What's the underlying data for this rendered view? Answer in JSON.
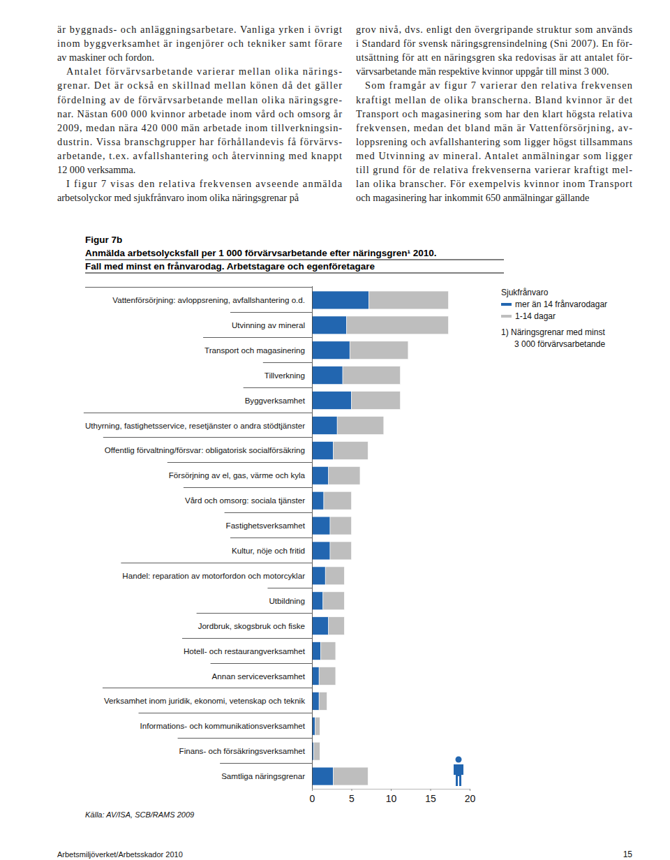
{
  "page": {
    "left_column": [
      [
        "är byggnads- och anläggningsarbetare. Vanliga yrken i övrigt",
        "inom byggverksamhet är ingenjörer och tekniker samt förare",
        "av maskiner och fordon."
      ],
      [
        "Antalet förvärvsarbetande varierar mellan olika närings-",
        "grenar. Det är också en skillnad mellan könen då det gäller",
        "fördelning av de förvärvsarbetande mellan olika näringsgre-",
        "nar. Nästan 600 000 kvinnor arbetade inom vård och omsorg år",
        "2009, medan nära 420 000 män arbetade inom tillverkningsin-",
        "dustrin. Vissa branschgrupper har förhållandevis få förvärvs-",
        "arbetande, t.ex. avfallshantering och återvinning med knappt",
        "12 000 verksamma."
      ],
      [
        "I figur 7 visas den relativa frekvensen avseende anmälda",
        "arbetsolyckor med sjukfrånvaro inom olika näringsgrenar på"
      ]
    ],
    "right_column": [
      [
        "grov nivå, dvs. enligt den övergripande struktur som används",
        "i Standard för svensk näringsgrensindelning (Sni 2007). En för-",
        "utsättning för att en näringsgren ska redovisas är att antalet för-",
        "värvsarbetande män respektive kvinnor uppgår till minst 3 000."
      ],
      [
        "Som framgår av figur 7 varierar den relativa frekvensen",
        "kraftigt mellan de olika branscherna. Bland kvinnor är det",
        "Transport och magasinering som har den klart högsta relativa",
        "frekvensen, medan det bland män är Vattenförsörjning, av-",
        "loppsrening och avfallshantering som ligger högst tillsammans",
        "med Utvinning av mineral. Antalet anmälningar som ligger",
        "till grund för de relativa frekvenserna varierar kraftigt mel-",
        "lan olika branscher. För exempelvis kvinnor inom Transport",
        "och magasinering har inkommit 650 anmälningar gällande"
      ]
    ],
    "footer_left": "Arbetsmiljöverket/Arbetsskador 2010",
    "page_number": "15"
  },
  "chart_data": {
    "type": "bar",
    "orientation": "horizontal",
    "stacked": true,
    "figure_label": "Figur 7b",
    "title": "Anmälda arbetsolycksfall per 1 000 förvärvsarbetande efter näringsgren¹ 2010.",
    "subtitle": "Fall med minst en frånvarodag. Arbetstagare och egenföretagare",
    "categories": [
      "Vattenförsörjning: avloppsrening, avfallshantering o.d.",
      "Utvinning av mineral",
      "Transport och magasinering",
      "Tillverkning",
      "Byggverksamhet",
      "Uthyrning, fastighetsservice, resetjänster o andra stödtjänster",
      "Offentlig förvaltning/försvar: obligatorisk socialförsäkring",
      "Försörjning av el, gas, värme och kyla",
      "Vård och omsorg: sociala tjänster",
      "Fastighetsverksamhet",
      "Kultur, nöje och fritid",
      "Handel: reparation av motorfordon och motorcyklar",
      "Utbildning",
      "Jordbruk, skogsbruk och fiske",
      "Hotell- och restaurangverksamhet",
      "Annan serviceverksamhet",
      "Verksamhet inom juridik, ekonomi, vetenskap och teknik",
      "Informations- och kommunikationsverksamhet",
      "Finans- och försäkringsverksamhet",
      "Samtliga näringsgrenar"
    ],
    "series": [
      {
        "name": "mer än 14 frånvarodagar",
        "color": "#2266b0",
        "values": [
          7.2,
          4.4,
          4.8,
          3.9,
          5.0,
          3.2,
          2.7,
          2.1,
          1.5,
          2.3,
          2.3,
          1.7,
          1.4,
          2.1,
          1.1,
          0.9,
          0.9,
          0.4,
          0.2,
          2.7
        ]
      },
      {
        "name": "1-14 dagar",
        "color": "#bebebe",
        "values": [
          10.1,
          12.9,
          7.4,
          7.3,
          6.2,
          5.9,
          4.4,
          4.0,
          3.5,
          2.7,
          2.7,
          2.4,
          2.7,
          2.0,
          1.9,
          2.1,
          1.0,
          0.6,
          0.8,
          4.4
        ]
      }
    ],
    "xlim": [
      0,
      20
    ],
    "xticks": [
      0,
      5,
      10,
      15,
      20
    ],
    "legend": "top right",
    "legend_title": "Sjukfrånvaro",
    "footnote": [
      "1) Näringsgrenar med minst",
      "3 000 förvärvsarbetande"
    ],
    "source": "Källa: AV/ISA, SCB/RAMS 2009"
  }
}
